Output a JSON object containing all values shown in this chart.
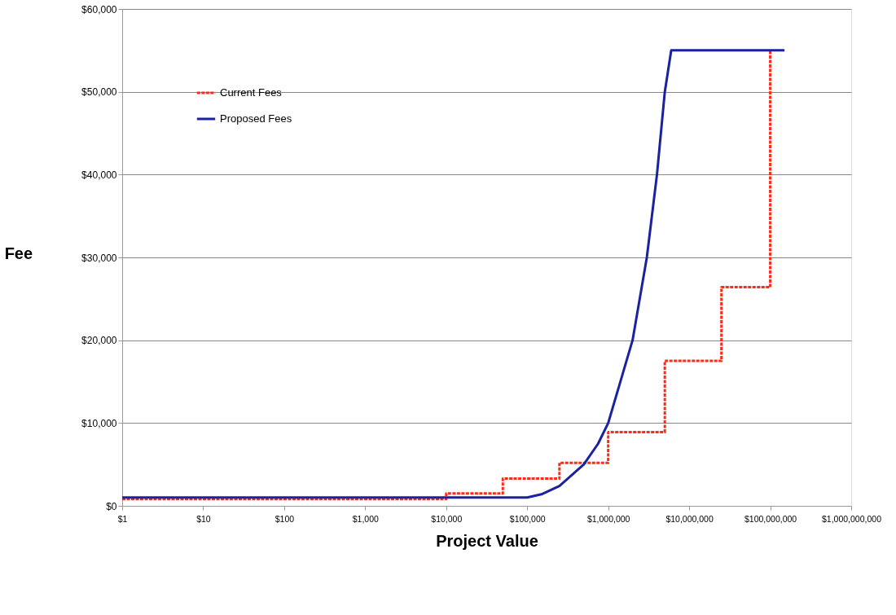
{
  "chart_data": {
    "type": "line",
    "xlabel": "Project Value",
    "ylabel": "Fee",
    "log": "x",
    "grid": "y",
    "legend": "top left",
    "xlim": [
      1,
      1000000000
    ],
    "ylim": [
      0,
      60000
    ],
    "xticks": [
      {
        "value": 1,
        "label": "$1"
      },
      {
        "value": 10,
        "label": "$10"
      },
      {
        "value": 100,
        "label": "$100"
      },
      {
        "value": 1000,
        "label": "$1,000"
      },
      {
        "value": 10000,
        "label": "$10,000"
      },
      {
        "value": 100000,
        "label": "$100,000"
      },
      {
        "value": 1000000,
        "label": "$1,000,000"
      },
      {
        "value": 10000000,
        "label": "$10,000,000"
      },
      {
        "value": 100000000,
        "label": "$100,000,000"
      },
      {
        "value": 1000000000,
        "label": "$1,000,000,000"
      }
    ],
    "yticks": [
      {
        "value": 0,
        "label": "$0"
      },
      {
        "value": 10000,
        "label": "$10,000"
      },
      {
        "value": 20000,
        "label": "$20,000"
      },
      {
        "value": 30000,
        "label": "$30,000"
      },
      {
        "value": 40000,
        "label": "$40,000"
      },
      {
        "value": 50000,
        "label": "$50,000"
      },
      {
        "value": 60000,
        "label": "$60,000"
      }
    ],
    "series": [
      {
        "name": "Current Fees",
        "type": "step",
        "color": "#ff2a1a",
        "line_style": "dashed",
        "x": [
          1,
          10000,
          50000,
          250000,
          1000000,
          5000000,
          25000000,
          100000000
        ],
        "values": [
          800,
          1500,
          3300,
          5200,
          8900,
          17500,
          26400,
          55000
        ]
      },
      {
        "name": "Proposed Fees",
        "type": "line",
        "color": "#1a22a0",
        "line_style": "solid",
        "x": [
          1,
          100000,
          150000,
          250000,
          500000,
          750000,
          1000000,
          2000000,
          3000000,
          4000000,
          5000000,
          6000000,
          150000000
        ],
        "values": [
          1000,
          1000,
          1400,
          2400,
          5000,
          7500,
          10000,
          20000,
          30000,
          40000,
          50000,
          55000,
          55000
        ]
      }
    ]
  }
}
